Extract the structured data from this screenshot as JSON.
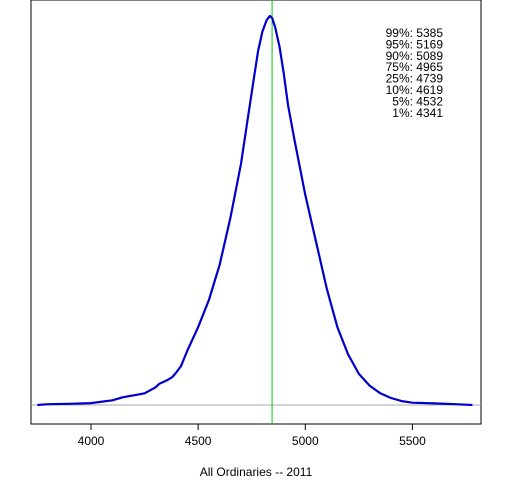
{
  "chart_data": {
    "type": "line",
    "title": "",
    "xlabel": "All Ordinaries -- 2011",
    "ylabel": "",
    "xlim": [
      3720,
      5820
    ],
    "ylim": [
      0,
      1.0
    ],
    "grid": false,
    "x_ticks": [
      4000,
      4500,
      5000,
      5500
    ],
    "x_tick_labels": [
      "4000",
      "4500",
      "5000",
      "5500"
    ],
    "series": [
      {
        "color": "#0000cc",
        "x": [
          3750,
          3800,
          3900,
          4000,
          4100,
          4150,
          4200,
          4250,
          4300,
          4320,
          4340,
          4360,
          4380,
          4400,
          4420,
          4450,
          4500,
          4550,
          4600,
          4650,
          4700,
          4730,
          4760,
          4780,
          4800,
          4820,
          4835,
          4845,
          4860,
          4880,
          4900,
          4920,
          4950,
          5000,
          5050,
          5100,
          5150,
          5200,
          5250,
          5300,
          5350,
          5400,
          5450,
          5500,
          5600,
          5700,
          5780
        ],
        "y": [
          0.0,
          0.002,
          0.003,
          0.005,
          0.012,
          0.02,
          0.025,
          0.03,
          0.045,
          0.055,
          0.06,
          0.065,
          0.072,
          0.085,
          0.1,
          0.14,
          0.2,
          0.27,
          0.36,
          0.48,
          0.62,
          0.73,
          0.84,
          0.91,
          0.96,
          0.99,
          1.0,
          0.995,
          0.97,
          0.92,
          0.85,
          0.77,
          0.68,
          0.54,
          0.42,
          0.3,
          0.2,
          0.13,
          0.08,
          0.05,
          0.03,
          0.018,
          0.01,
          0.006,
          0.004,
          0.002,
          0.0
        ]
      }
    ],
    "reference_line": {
      "x": 4845,
      "color": "#00cc00"
    },
    "baseline_color": "#aaaaaa",
    "quantiles": [
      {
        "label": "99%:",
        "value": "5385"
      },
      {
        "label": "95%:",
        "value": "5169"
      },
      {
        "label": "90%:",
        "value": "5089"
      },
      {
        "label": "75%:",
        "value": "4965"
      },
      {
        "label": "25%:",
        "value": "4739"
      },
      {
        "label": "10%:",
        "value": "4619"
      },
      {
        "label": "5%:",
        "value": "4532"
      },
      {
        "label": "1%:",
        "value": "4341"
      }
    ]
  }
}
